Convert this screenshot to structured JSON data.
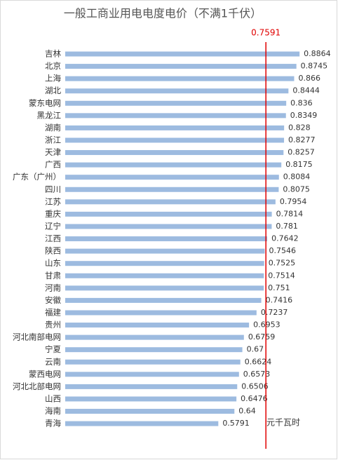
{
  "chart_data": {
    "type": "hbar",
    "title": "一般工商业用电电度电价（不满1千伏）",
    "categories": [
      "吉林",
      "北京",
      "上海",
      "湖北",
      "蒙东电网",
      "黑龙江",
      "湖南",
      "浙江",
      "天津",
      "广西",
      "广东（广州）",
      "四川",
      "江苏",
      "重庆",
      "辽宁",
      "江西",
      "陕西",
      "山东",
      "甘肃",
      "河南",
      "安徽",
      "福建",
      "贵州",
      "河北南部电网",
      "宁夏",
      "云南",
      "蒙西电网",
      "河北北部电网",
      "山西",
      "海南",
      "青海"
    ],
    "values": [
      0.8864,
      0.8745,
      0.866,
      0.8444,
      0.836,
      0.8349,
      0.828,
      0.8277,
      0.8257,
      0.8175,
      0.8084,
      0.8075,
      0.7954,
      0.7814,
      0.781,
      0.7642,
      0.7546,
      0.7525,
      0.7514,
      0.751,
      0.7416,
      0.7237,
      0.6953,
      0.6759,
      0.67,
      0.6624,
      0.6573,
      0.6506,
      0.6476,
      0.64,
      0.5791
    ],
    "color": "#9dbbe0",
    "xlim": [
      0,
      1
    ],
    "reference_line": {
      "value": 0.7591,
      "color": "#e00000"
    },
    "unit_label": "元千瓦时"
  }
}
